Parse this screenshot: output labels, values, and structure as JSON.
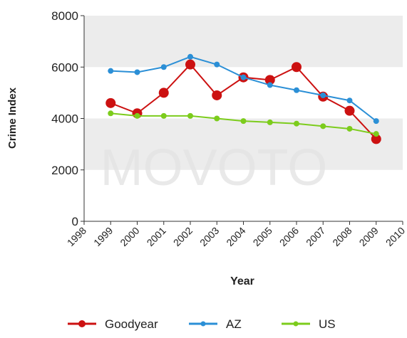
{
  "chart_data": {
    "type": "line",
    "x": [
      1999,
      2000,
      2001,
      2002,
      2003,
      2004,
      2005,
      2006,
      2007,
      2008,
      2009
    ],
    "series": [
      {
        "name": "Goodyear",
        "color": "#cc1111",
        "values": [
          4600,
          4200,
          5000,
          6100,
          4900,
          5600,
          5500,
          6000,
          4850,
          4300,
          3200
        ]
      },
      {
        "name": "AZ",
        "color": "#2b8fd6",
        "values": [
          5850,
          5800,
          6000,
          6400,
          6100,
          5600,
          5300,
          5100,
          4900,
          4700,
          3900
        ]
      },
      {
        "name": "US",
        "color": "#7ccc1c",
        "values": [
          4200,
          4100,
          4100,
          4100,
          4000,
          3900,
          3850,
          3800,
          3700,
          3600,
          3400
        ]
      }
    ],
    "xlim": [
      1998,
      2010
    ],
    "xticks": [
      1998,
      1999,
      2000,
      2001,
      2002,
      2003,
      2004,
      2005,
      2006,
      2007,
      2008,
      2009,
      2010
    ],
    "ylim": [
      0,
      8000
    ],
    "yticks": [
      0,
      2000,
      4000,
      6000,
      8000
    ],
    "grid": "bands",
    "xlabel": "Year",
    "ylabel": "Crime Index",
    "watermark": "MOVOTO",
    "legend": "bottom"
  }
}
